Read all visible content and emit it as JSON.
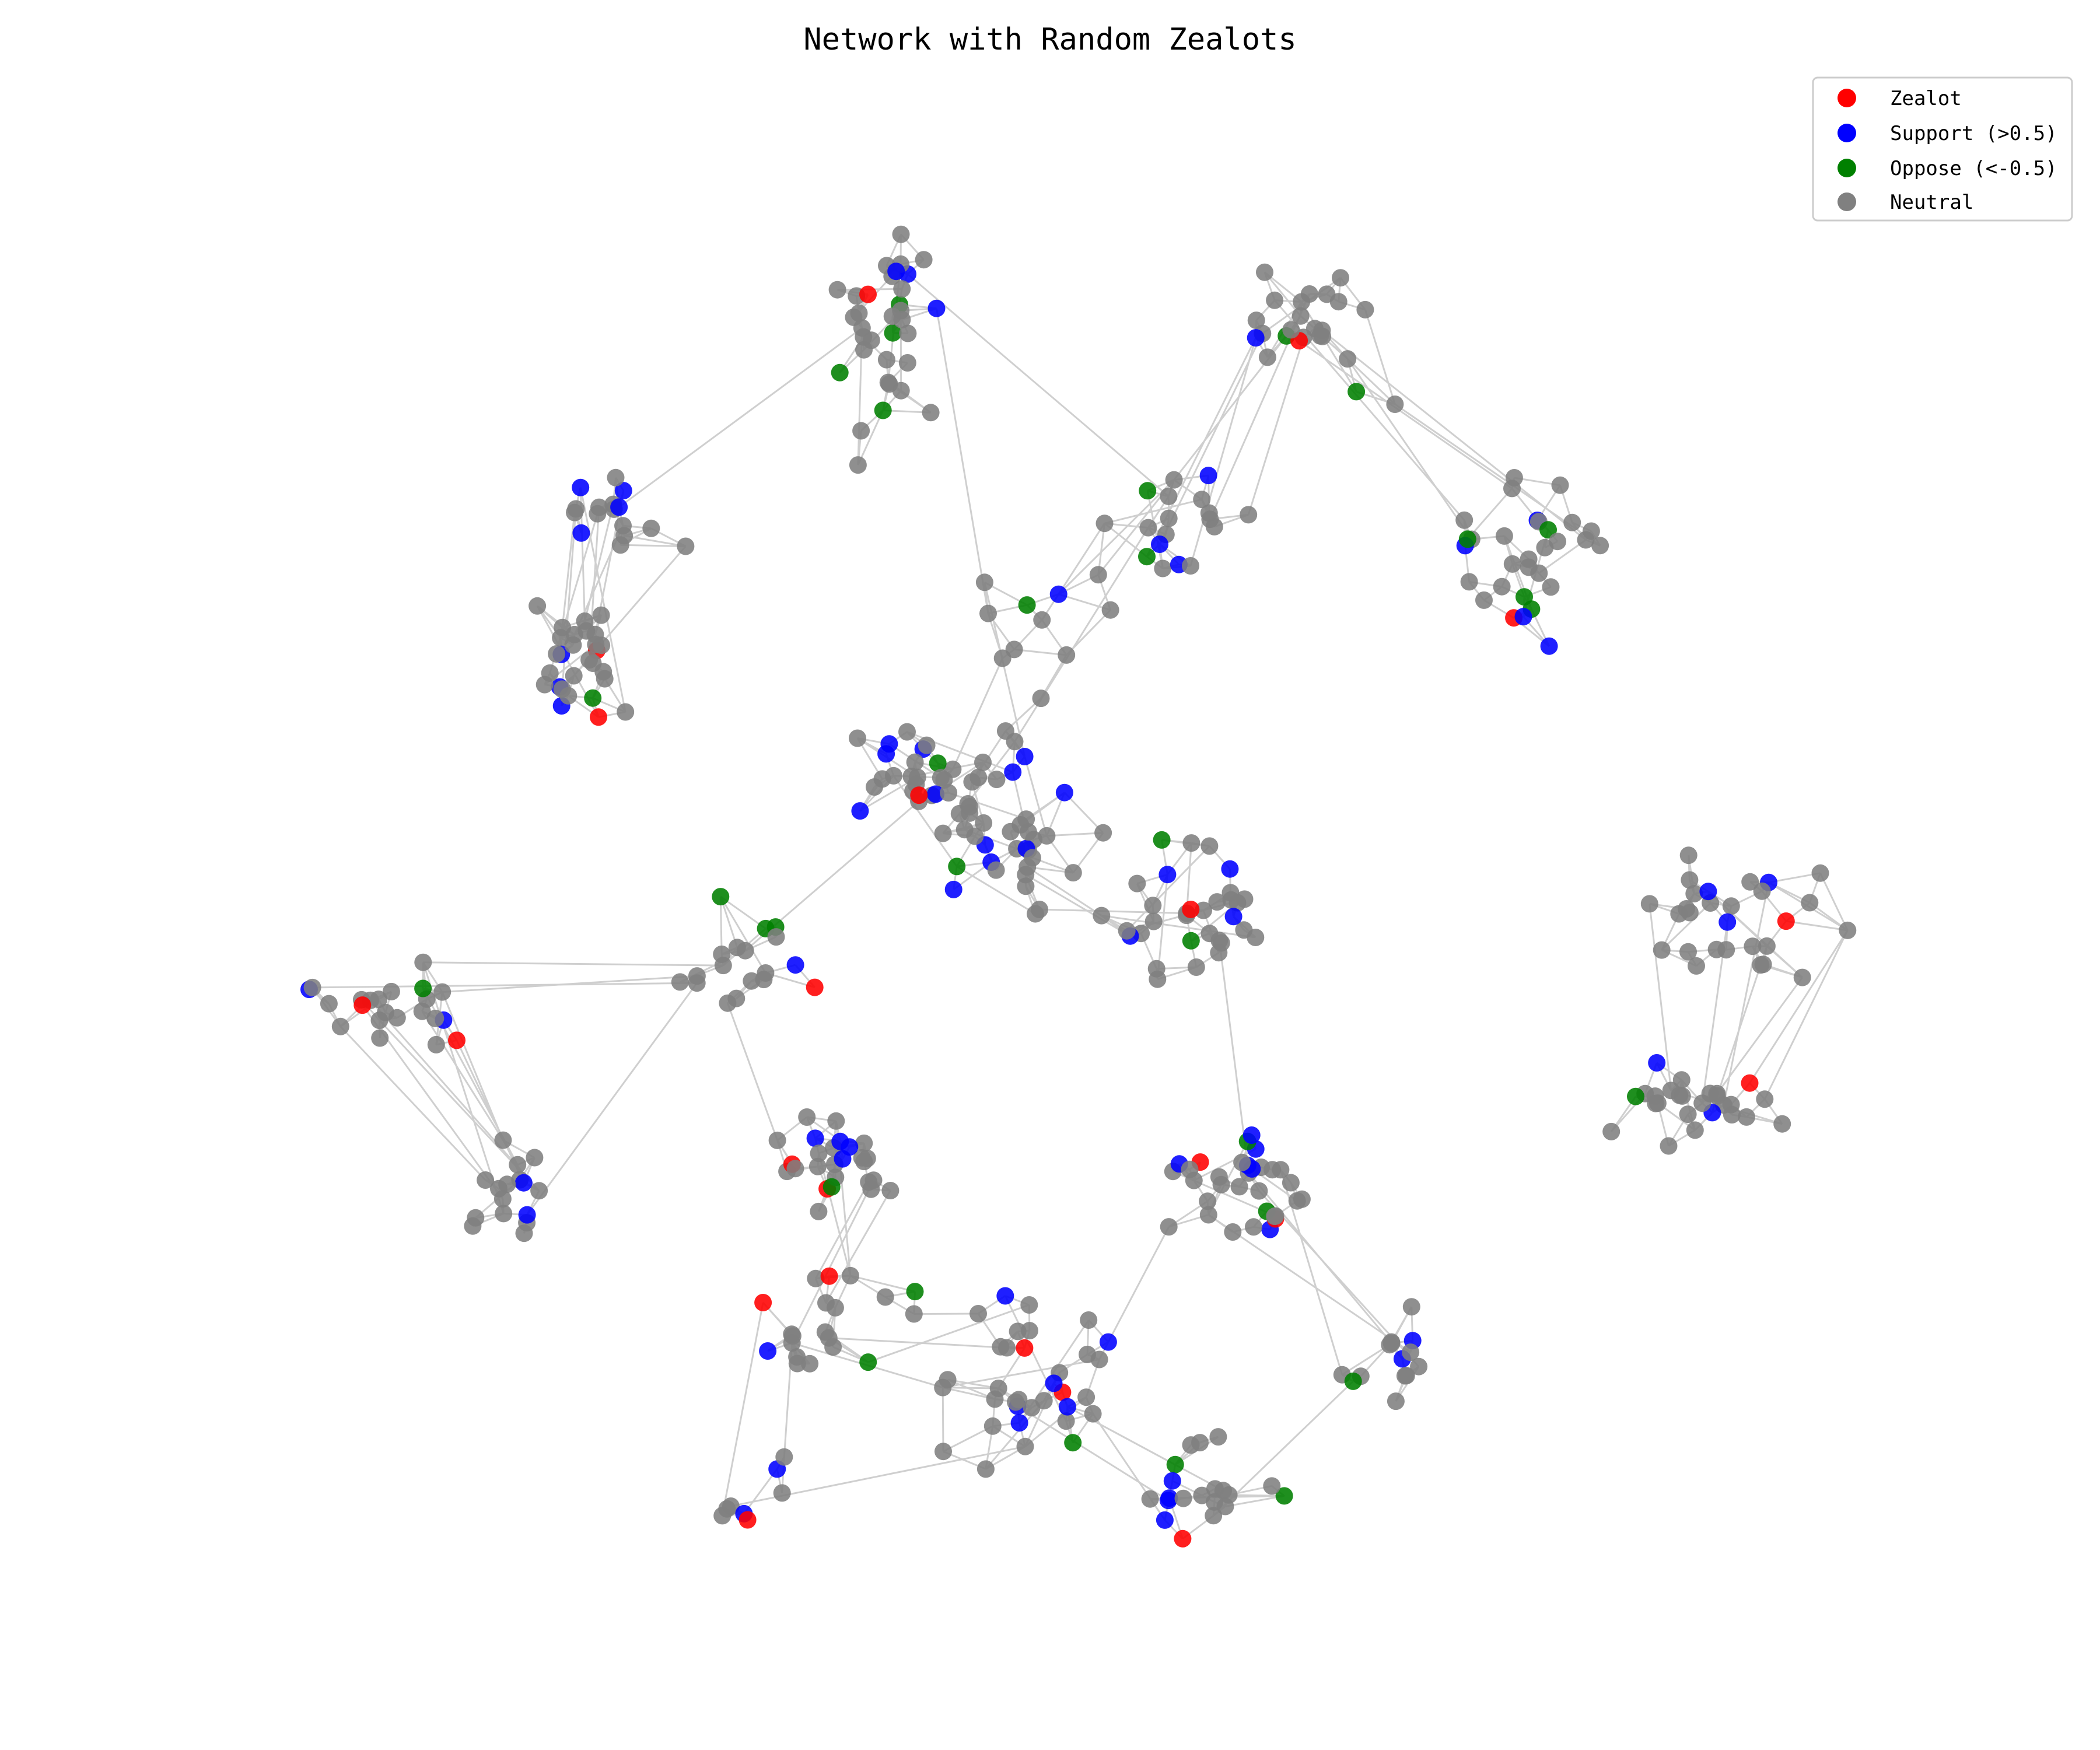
{
  "title": "Network with Random Zealots",
  "legend": [
    {
      "key": "zealot",
      "label": "Zealot",
      "color": "#ff0000"
    },
    {
      "key": "support",
      "label": "Support (>0.5)",
      "color": "#0000ff"
    },
    {
      "key": "oppose",
      "label": "Oppose (<-0.5)",
      "color": "#008000"
    },
    {
      "key": "neutral",
      "label": "Neutral",
      "color": "#808080"
    }
  ],
  "counts_shown": {
    "zealot": 22,
    "support": 70,
    "oppose": 32,
    "neutral": 396
  },
  "colors": {
    "edge": "#cfcfcf",
    "legend_border": "#cccccc",
    "background": "#ffffff"
  }
}
